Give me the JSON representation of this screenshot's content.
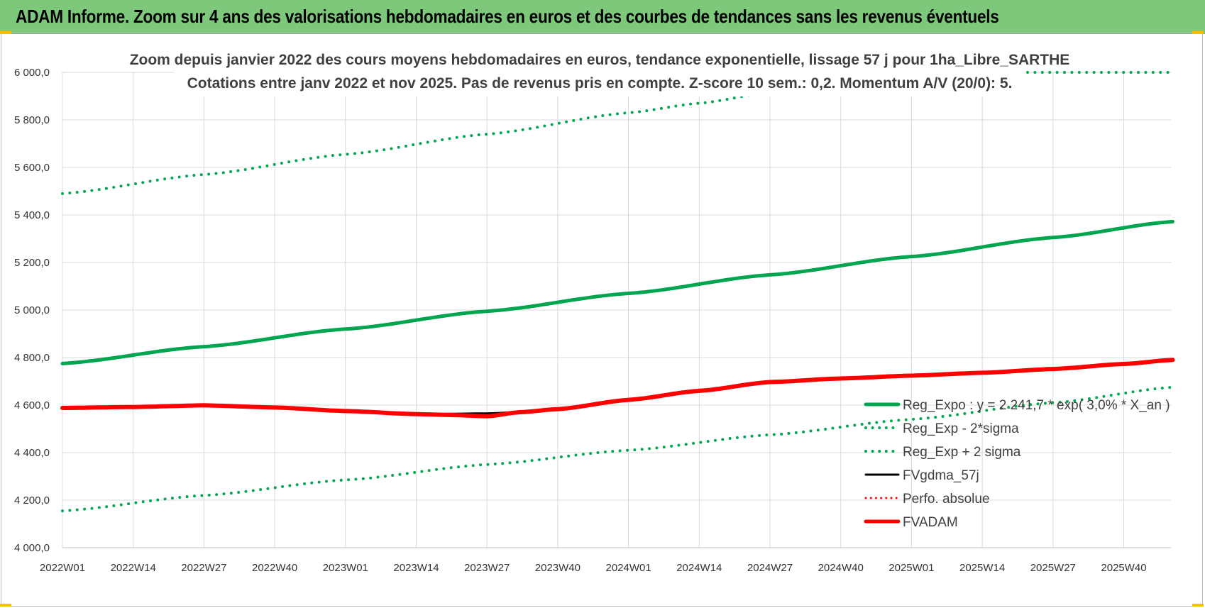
{
  "banner": {
    "title": "ADAM Informe. Zoom sur 4 ans des valorisations hebdomadaires en euros et des courbes de tendances sans les revenus éventuels"
  },
  "chart_data": {
    "type": "line",
    "title": "Zoom depuis janvier 2022 des cours moyens hebdomadaires en euros, tendance exponentielle, lissage 57 j pour 1ha_Libre_SARTHE",
    "subtitle": "Cotations entre janv 2022 et nov 2025. Pas de revenus pris en compte. Z-score 10 sem.: 0,2. Momentum A/V (20/0): 5.",
    "xlabel": "",
    "ylabel": "",
    "ylim": [
      4000,
      6000
    ],
    "yticks": [
      "4 000,0",
      "4 200,0",
      "4 400,0",
      "4 600,0",
      "4 800,0",
      "5 000,0",
      "5 200,0",
      "5 400,0",
      "5 600,0",
      "5 800,0",
      "6 000,0"
    ],
    "xticks": [
      "2022W01",
      "2022W14",
      "2022W27",
      "2022W40",
      "2023W01",
      "2023W14",
      "2023W27",
      "2023W40",
      "2024W01",
      "2024W14",
      "2024W27",
      "2024W40",
      "2025W01",
      "2025W14",
      "2025W27",
      "2025W40"
    ],
    "x_tick_week_index": [
      0,
      13,
      26,
      39,
      52,
      65,
      78,
      91,
      104,
      117,
      130,
      143,
      156,
      169,
      182,
      195
    ],
    "n_weeks": 205,
    "grid": true,
    "legend_position": "bottom-right",
    "series": [
      {
        "name": "Reg_Expo : y = 2 241,7 * exp( 3,0% *  X_an )",
        "color": "#00a550",
        "style": "solid",
        "width": 5,
        "x_week": [
          0,
          26,
          52,
          78,
          104,
          130,
          156,
          182,
          204
        ],
        "values": [
          4775,
          4846,
          4920,
          4995,
          5070,
          5148,
          5225,
          5305,
          5372
        ]
      },
      {
        "name": "Reg_Exp - 2*sigma",
        "color": "#00a550",
        "style": "dotted",
        "width": 4,
        "x_week": [
          0,
          26,
          52,
          78,
          104,
          130,
          156,
          182,
          204
        ],
        "values": [
          4155,
          4220,
          4285,
          4350,
          4410,
          4475,
          4540,
          4610,
          4675
        ]
      },
      {
        "name": "Reg_Exp + 2 sigma",
        "color": "#00a550",
        "style": "dotted",
        "width": 4,
        "x_week": [
          0,
          26,
          52,
          78,
          104,
          117,
          130,
          143,
          156,
          182,
          204
        ],
        "values": [
          5490,
          5570,
          5655,
          5740,
          5830,
          5870,
          5915,
          5960,
          6000,
          6000,
          6000
        ]
      },
      {
        "name": "FVgdma_57j",
        "color": "#000000",
        "style": "solid",
        "width": 3,
        "x_week": [
          0,
          13,
          26,
          39,
          52,
          65,
          78,
          91,
          104,
          117,
          130,
          143,
          156,
          169,
          182,
          195,
          204
        ],
        "values": [
          4588,
          4592,
          4598,
          4590,
          4575,
          4562,
          4565,
          4580,
          4620,
          4660,
          4700,
          4712,
          4724,
          4737,
          4752,
          4774,
          4790
        ]
      },
      {
        "name": "Perfo. absolue",
        "color": "#ff0000",
        "style": "dotted",
        "width": 3,
        "x_week": [],
        "values": []
      },
      {
        "name": "FVADAM",
        "color": "#ff0000",
        "style": "solid",
        "width": 6,
        "x_week": [
          0,
          13,
          26,
          39,
          52,
          65,
          72,
          78,
          84,
          91,
          104,
          117,
          130,
          143,
          156,
          169,
          182,
          195,
          204
        ],
        "values": [
          4588,
          4592,
          4599,
          4590,
          4575,
          4562,
          4558,
          4553,
          4570,
          4583,
          4622,
          4660,
          4697,
          4712,
          4724,
          4736,
          4752,
          4773,
          4790
        ]
      }
    ]
  }
}
